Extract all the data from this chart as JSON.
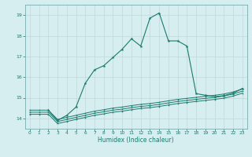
{
  "xlabel": "Humidex (Indice chaleur)",
  "background_color": "#d6eef0",
  "line_color": "#1b7a6d",
  "grid_color": "#c0d8dc",
  "tick_color": "#1b7a6d",
  "xlim": [
    -0.5,
    23.5
  ],
  "ylim": [
    13.5,
    19.5
  ],
  "yticks": [
    14,
    15,
    16,
    17,
    18,
    19
  ],
  "xticks": [
    0,
    1,
    2,
    3,
    4,
    5,
    6,
    7,
    8,
    9,
    10,
    11,
    12,
    13,
    14,
    15,
    16,
    17,
    18,
    19,
    20,
    21,
    22,
    23
  ],
  "series_flat": [
    {
      "x": [
        0,
        1,
        2,
        3,
        4,
        5,
        6,
        7,
        8,
        9,
        10,
        11,
        12,
        13,
        14,
        15,
        16,
        17,
        18,
        19,
        20,
        21,
        22,
        23
      ],
      "y": [
        14.4,
        14.4,
        14.4,
        13.95,
        14.05,
        14.15,
        14.25,
        14.35,
        14.42,
        14.5,
        14.55,
        14.62,
        14.68,
        14.72,
        14.78,
        14.85,
        14.92,
        14.97,
        15.02,
        15.07,
        15.12,
        15.18,
        15.28,
        15.42
      ]
    },
    {
      "x": [
        0,
        1,
        2,
        3,
        4,
        5,
        6,
        7,
        8,
        9,
        10,
        11,
        12,
        13,
        14,
        15,
        16,
        17,
        18,
        19,
        20,
        21,
        22,
        23
      ],
      "y": [
        14.3,
        14.3,
        14.3,
        13.85,
        13.95,
        14.05,
        14.15,
        14.25,
        14.32,
        14.4,
        14.45,
        14.52,
        14.58,
        14.62,
        14.68,
        14.75,
        14.82,
        14.87,
        14.92,
        14.97,
        15.02,
        15.08,
        15.18,
        15.32
      ]
    },
    {
      "x": [
        0,
        1,
        2,
        3,
        4,
        5,
        6,
        7,
        8,
        9,
        10,
        11,
        12,
        13,
        14,
        15,
        16,
        17,
        18,
        19,
        20,
        21,
        22,
        23
      ],
      "y": [
        14.2,
        14.2,
        14.2,
        13.75,
        13.85,
        13.95,
        14.05,
        14.15,
        14.22,
        14.3,
        14.35,
        14.42,
        14.48,
        14.52,
        14.58,
        14.65,
        14.72,
        14.77,
        14.82,
        14.87,
        14.92,
        14.98,
        15.08,
        15.22
      ]
    }
  ],
  "series_peak": {
    "x": [
      2,
      3,
      4,
      5,
      6,
      7,
      8,
      9,
      10,
      11,
      12,
      13,
      14,
      15,
      16,
      17,
      18,
      19,
      20,
      21,
      22,
      23
    ],
    "y": [
      14.4,
      13.9,
      14.15,
      14.55,
      15.7,
      16.35,
      16.55,
      16.95,
      17.35,
      17.85,
      17.5,
      18.85,
      19.1,
      17.75,
      17.75,
      17.5,
      15.2,
      15.12,
      15.05,
      15.1,
      15.22,
      15.45
    ]
  }
}
